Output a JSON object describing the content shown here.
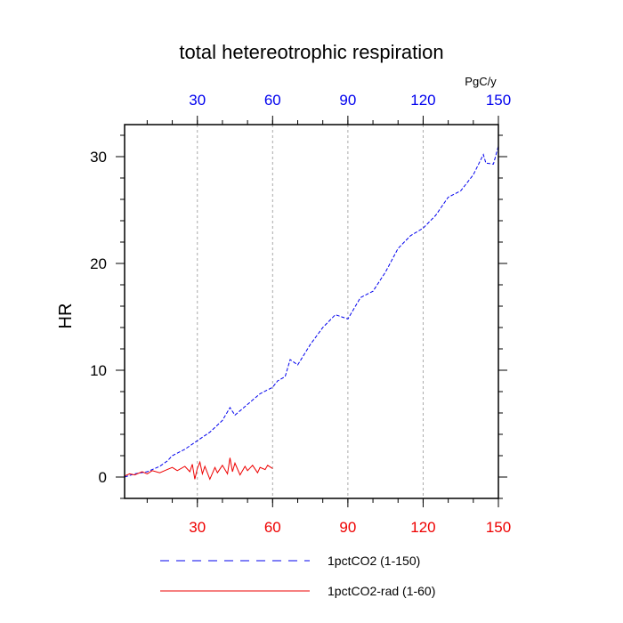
{
  "chart_data": {
    "type": "line",
    "title": "total hetereotrophic respiration",
    "ylabel": "HR",
    "top_axis_unit": "PgC/y",
    "xlim": [
      1,
      150
    ],
    "ylim": [
      -2,
      33
    ],
    "x_ticks_bottom": [
      30,
      60,
      90,
      120,
      150
    ],
    "x_ticks_top": [
      30,
      60,
      90,
      120,
      150
    ],
    "y_ticks": [
      0,
      10,
      20,
      30
    ],
    "grid": "vertical-dashed",
    "legend_position": "bottom",
    "colors": {
      "top_axis": "#0000ee",
      "bottom_axis": "#ee0000",
      "series_1pctCO2": "#0000ee",
      "series_1pctCO2_rad": "#ee0000"
    },
    "series": [
      {
        "name": "1pctCO2 (1-150)",
        "style": "dashed",
        "x": [
          1,
          5,
          10,
          15,
          18,
          20,
          25,
          30,
          35,
          40,
          43,
          45,
          50,
          55,
          60,
          62,
          65,
          67,
          70,
          75,
          80,
          85,
          90,
          95,
          100,
          105,
          110,
          115,
          120,
          125,
          130,
          135,
          140,
          144,
          145,
          148,
          150
        ],
        "y": [
          0,
          0.3,
          0.5,
          1.0,
          1.5,
          2.0,
          2.6,
          3.4,
          4.2,
          5.3,
          6.5,
          5.8,
          6.8,
          7.8,
          8.4,
          9.0,
          9.4,
          11.0,
          10.5,
          12.4,
          14.0,
          15.2,
          14.8,
          16.8,
          17.4,
          19.2,
          21.4,
          22.6,
          23.3,
          24.5,
          26.2,
          26.8,
          28.3,
          30.2,
          29.4,
          29.3,
          31.0
        ]
      },
      {
        "name": "1pctCO2-rad (1-60)",
        "style": "solid",
        "x": [
          1,
          3,
          5,
          8,
          10,
          12,
          15,
          18,
          20,
          22,
          25,
          27,
          28,
          29,
          30,
          31,
          32,
          33,
          35,
          37,
          38,
          40,
          42,
          43,
          44,
          45,
          47,
          49,
          50,
          52,
          54,
          55,
          57,
          58,
          60
        ],
        "y": [
          0.1,
          0.3,
          0.2,
          0.5,
          0.3,
          0.6,
          0.4,
          0.7,
          0.9,
          0.6,
          1.0,
          0.5,
          1.2,
          -0.2,
          0.8,
          1.4,
          0.3,
          1.0,
          -0.2,
          0.9,
          0.4,
          1.1,
          0.3,
          1.8,
          0.5,
          1.3,
          0.2,
          1.0,
          0.6,
          1.1,
          0.4,
          0.9,
          0.7,
          1.1,
          0.8
        ]
      }
    ]
  }
}
